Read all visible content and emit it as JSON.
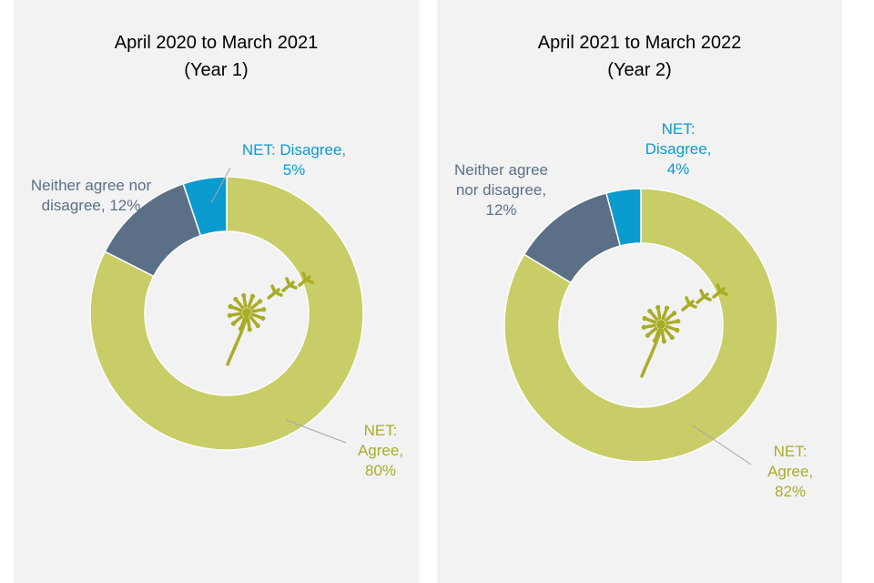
{
  "chart_data": [
    {
      "type": "pie",
      "variant": "donut",
      "title": "April 2020 to March 2021",
      "subtitle": "(Year 1)",
      "slices": [
        {
          "name": "NET: Agree",
          "value": 80,
          "color": "#c8cd68"
        },
        {
          "name": "Neither agree nor disagree",
          "value": 12,
          "color": "#5b7087"
        },
        {
          "name": "NET: Disagree",
          "value": 5,
          "color": "#0a9bcf"
        }
      ],
      "labels": [
        {
          "text": "NET:\nAgree,\n80%",
          "color": "#a8ac2a"
        },
        {
          "text": "Neither agree nor\ndisagree, 12%",
          "color": "#5b7087"
        },
        {
          "text": "NET: Disagree,\n5%",
          "color": "#0a9bcf"
        }
      ],
      "icon": "dandelion-icon"
    },
    {
      "type": "pie",
      "variant": "donut",
      "title": "April 2021 to March 2022",
      "subtitle": "(Year 2)",
      "slices": [
        {
          "name": "NET: Agree",
          "value": 82,
          "color": "#c8cd68"
        },
        {
          "name": "Neither agree nor disagree",
          "value": 12,
          "color": "#5b7087"
        },
        {
          "name": "NET: Disagree",
          "value": 4,
          "color": "#0a9bcf"
        }
      ],
      "labels": [
        {
          "text": "NET:\nAgree,\n82%",
          "color": "#a8ac2a"
        },
        {
          "text": "Neither agree\nnor disagree,\n12%",
          "color": "#5b7087"
        },
        {
          "text": "NET:\nDisagree,\n4%",
          "color": "#0a9bcf"
        }
      ],
      "icon": "dandelion-icon"
    }
  ]
}
